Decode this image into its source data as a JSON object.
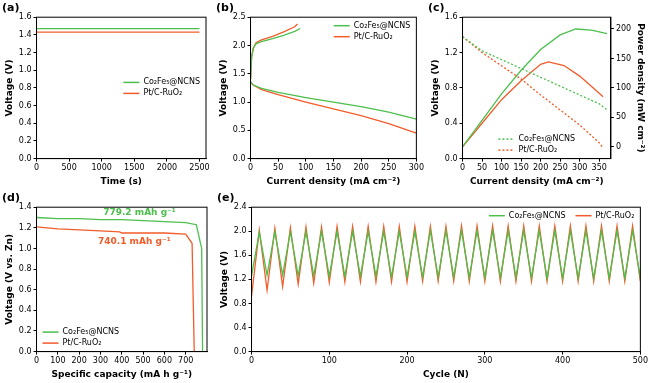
{
  "chart_data": [
    {
      "type": "line",
      "title": "(a)",
      "x_label": "Time (s)",
      "y_label": "Voltage (V)",
      "xlim": [
        0,
        2600
      ],
      "xticks": [
        0,
        500,
        1000,
        1500,
        2000,
        2500
      ],
      "ylim": [
        0,
        1.6
      ],
      "yticks": [
        {
          "value": 0,
          "label": "0.0"
        },
        0.2,
        0.4,
        0.6,
        0.8,
        {
          "value": 1,
          "label": "1.0"
        },
        1.2,
        1.4,
        1.6
      ],
      "grid": false,
      "legend": "center right",
      "x": [
        0,
        250,
        500,
        750,
        1000,
        1250,
        1500,
        1750,
        2000,
        2250,
        2500
      ],
      "series": [
        {
          "name": "Co₂Fe₅@NCNS",
          "color": "#4dbf4d",
          "values": [
            1.47,
            1.47,
            1.47,
            1.47,
            1.47,
            1.47,
            1.47,
            1.47,
            1.47,
            1.47,
            1.47
          ]
        },
        {
          "name": "Pt/C-RuO₂",
          "color": "#f25c2a",
          "values": [
            1.43,
            1.43,
            1.43,
            1.43,
            1.43,
            1.43,
            1.43,
            1.43,
            1.43,
            1.43,
            1.43
          ]
        }
      ]
    },
    {
      "type": "line",
      "title": "(b)",
      "x_label": "Current density (mA cm⁻²)",
      "y_label": "Voltage (V)",
      "xlim": [
        0,
        300
      ],
      "xticks": [
        0,
        50,
        100,
        150,
        200,
        250,
        300
      ],
      "ylim": [
        0,
        2.5
      ],
      "yticks": [
        {
          "value": 0,
          "label": "0.0"
        },
        0.5,
        {
          "value": 1,
          "label": "1.0"
        },
        1.5,
        {
          "value": 2,
          "label": "2.0"
        },
        2.5
      ],
      "grid": false,
      "legend": "top right",
      "series": [
        {
          "name": "Co₂Fe₅@NCNS",
          "color": "#4dbf4d",
          "x": [
            0,
            5,
            20,
            50,
            100,
            150,
            200,
            250,
            300,
            null,
            0,
            2,
            5,
            10,
            20,
            40,
            60,
            80,
            90
          ],
          "values": [
            1.36,
            1.3,
            1.24,
            1.17,
            1.08,
            1.0,
            0.92,
            0.82,
            0.7,
            null,
            1.4,
            1.8,
            1.95,
            2.03,
            2.07,
            2.12,
            2.18,
            2.25,
            2.3
          ]
        },
        {
          "name": "Pt/C-RuO₂",
          "color": "#f25c2a",
          "x": [
            0,
            5,
            20,
            50,
            100,
            150,
            200,
            250,
            300,
            null,
            0,
            2,
            5,
            10,
            20,
            40,
            60,
            80,
            85
          ],
          "values": [
            1.35,
            1.3,
            1.22,
            1.13,
            1.0,
            0.88,
            0.76,
            0.62,
            0.45,
            null,
            1.4,
            1.8,
            1.95,
            2.05,
            2.1,
            2.16,
            2.24,
            2.33,
            2.38
          ]
        }
      ]
    },
    {
      "type": "line",
      "title": "(c)",
      "x_label": "Current density (mA cm⁻²)",
      "y_label": "Voltage (V)",
      "y2_label": "Power density (mW cm⁻²)",
      "xlim": [
        0,
        380
      ],
      "xticks": [
        0,
        50,
        100,
        150,
        200,
        250,
        300,
        350
      ],
      "ylim": [
        0,
        1.6
      ],
      "yticks": [
        {
          "value": 0,
          "label": "0.0"
        },
        0.4,
        0.8,
        1.2,
        1.6
      ],
      "y2lim": [
        -20,
        220
      ],
      "y2ticks": [
        0,
        50,
        100,
        150,
        200
      ],
      "grid": false,
      "legend": "bottom center",
      "series": [
        {
          "name": "Co₂Fe₅@NCNS",
          "color": "#4dbf4d",
          "line_style": "dotted",
          "x": [
            0,
            50,
            100,
            150,
            200,
            250,
            300,
            350,
            370
          ],
          "values": [
            1.38,
            1.22,
            1.12,
            1.02,
            0.92,
            0.82,
            0.72,
            0.62,
            0.55
          ]
        },
        {
          "name": "Pt/C-RuO₂",
          "color": "#f25c2a",
          "line_style": "dotted",
          "x": [
            0,
            50,
            100,
            150,
            200,
            250,
            300,
            350,
            360
          ],
          "values": [
            1.38,
            1.2,
            1.05,
            0.9,
            0.72,
            0.55,
            0.38,
            0.18,
            0.12
          ]
        },
        {
          "name": "Co₂Fe₅@NCNS",
          "color": "#4dbf4d",
          "axis": "y2",
          "x": [
            0,
            50,
            100,
            150,
            200,
            250,
            290,
            330,
            370
          ],
          "values": [
            0,
            45,
            90,
            130,
            165,
            190,
            200,
            198,
            192
          ]
        },
        {
          "name": "Pt/C-RuO₂",
          "color": "#f25c2a",
          "axis": "y2",
          "x": [
            0,
            50,
            100,
            150,
            200,
            220,
            260,
            300,
            340,
            360
          ],
          "values": [
            0,
            40,
            80,
            112,
            140,
            144,
            138,
            120,
            97,
            85
          ]
        }
      ]
    },
    {
      "type": "line",
      "title": "(d)",
      "x_label": "Specific capacity (mA h g⁻¹)",
      "y_label": "Voltage (V vs. Zn)",
      "xlim": [
        0,
        800
      ],
      "xticks": [
        0,
        100,
        200,
        300,
        400,
        500,
        600,
        700
      ],
      "ylim": [
        0,
        1.4
      ],
      "yticks": [
        {
          "value": 0,
          "label": "0.0"
        },
        0.2,
        0.4,
        0.6,
        0.8,
        {
          "value": 1,
          "label": "1.0"
        },
        1.2,
        1.4
      ],
      "grid": false,
      "legend": "bottom left",
      "series": [
        {
          "name": "Co₂Fe₅@NCNS",
          "color": "#4dbf4d",
          "annotation": "779.2 mAh g⁻¹",
          "x": [
            0,
            100,
            200,
            300,
            400,
            500,
            600,
            700,
            750,
            775,
            779.2
          ],
          "values": [
            1.3,
            1.29,
            1.29,
            1.28,
            1.28,
            1.27,
            1.26,
            1.25,
            1.23,
            1.0,
            0
          ]
        },
        {
          "name": "Pt/C-RuO₂",
          "color": "#f25c2a",
          "annotation": "740.1 mAh g⁻¹",
          "x": [
            0,
            100,
            200,
            300,
            390,
            400,
            500,
            600,
            700,
            730,
            740.1
          ],
          "values": [
            1.21,
            1.19,
            1.18,
            1.17,
            1.16,
            1.15,
            1.15,
            1.15,
            1.14,
            1.05,
            0
          ]
        }
      ]
    },
    {
      "type": "line",
      "title": "(e)",
      "x_label": "Cycle (N)",
      "y_label": "Voltage (V)",
      "xlim": [
        0,
        500
      ],
      "xticks": [
        0,
        100,
        200,
        300,
        400,
        500
      ],
      "ylim": [
        0,
        2.4
      ],
      "yticks": [
        {
          "value": 0,
          "label": "0.0"
        },
        0.4,
        0.8,
        1.2,
        1.6,
        {
          "value": 2,
          "label": "2.0"
        },
        2.4
      ],
      "grid": false,
      "legend": "top right",
      "x": [
        0,
        10,
        20,
        30,
        40,
        50,
        60,
        70,
        80,
        90,
        100,
        110,
        120,
        130,
        140,
        150,
        160,
        170,
        180,
        190,
        200,
        210,
        220,
        230,
        240,
        250,
        260,
        270,
        280,
        290,
        300,
        310,
        320,
        330,
        340,
        350,
        360,
        370,
        380,
        390,
        400,
        410,
        420,
        430,
        440,
        450,
        460,
        470,
        480,
        490,
        500
      ],
      "series": [
        {
          "name": "Co₂Fe₅@NCNS",
          "color": "#4dbf4d",
          "values": [
            1.26,
            1.98,
            1.27,
            1.99,
            1.27,
            1.99,
            1.26,
            2.0,
            1.26,
            2.0,
            1.25,
            2.0,
            1.25,
            2.0,
            1.25,
            2.0,
            1.25,
            2.0,
            1.24,
            2.0,
            1.24,
            2.0,
            1.24,
            2.01,
            1.24,
            2.01,
            1.24,
            2.01,
            1.23,
            2.01,
            1.23,
            2.01,
            1.23,
            2.01,
            1.23,
            2.01,
            1.23,
            2.01,
            1.22,
            2.01,
            1.22,
            2.01,
            1.22,
            2.01,
            1.22,
            2.01,
            1.22,
            2.01,
            1.22,
            2.01,
            1.22
          ]
        },
        {
          "name": "Pt/C-RuO₂",
          "color": "#f25c2a",
          "values": [
            0.92,
            2.02,
            1.02,
            2.05,
            1.08,
            2.06,
            1.12,
            2.07,
            1.14,
            2.07,
            1.15,
            2.08,
            1.16,
            2.08,
            1.16,
            2.08,
            1.16,
            2.08,
            1.16,
            2.08,
            1.16,
            2.08,
            1.17,
            2.08,
            1.17,
            2.08,
            1.17,
            2.09,
            1.17,
            2.09,
            1.17,
            2.09,
            1.17,
            2.09,
            1.17,
            2.09,
            1.17,
            2.09,
            1.17,
            2.09,
            1.17,
            2.09,
            1.17,
            2.09,
            1.17,
            2.09,
            1.17,
            2.09,
            1.17,
            2.09,
            1.17
          ]
        }
      ]
    }
  ]
}
